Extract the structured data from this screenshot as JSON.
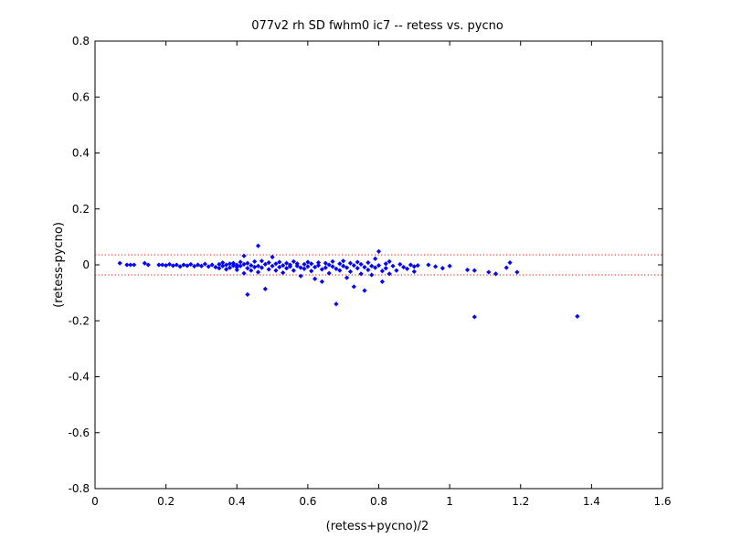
{
  "chart_data": {
    "type": "scatter",
    "title": "077v2 rh SD fwhm0 ic7 -- retess vs. pycno",
    "xlabel": "(retess+pycno)/2",
    "ylabel": "(retess-pycno)",
    "xlim": [
      0,
      1.6
    ],
    "ylim": [
      -0.8,
      0.8
    ],
    "x_ticks": [
      0,
      0.2,
      0.4,
      0.6,
      0.8,
      1,
      1.2,
      1.4,
      1.6
    ],
    "x_tick_labels": [
      "0",
      "0.2",
      "0.4",
      "0.6",
      "0.8",
      "1",
      "1.2",
      "1.4",
      "1.6"
    ],
    "y_ticks": [
      -0.8,
      -0.6,
      -0.4,
      -0.2,
      0,
      0.2,
      0.4,
      0.6,
      0.8
    ],
    "y_tick_labels": [
      "-0.8",
      "-0.6",
      "-0.4",
      "-0.2",
      "0",
      "0.2",
      "0.4",
      "0.6",
      "0.8"
    ],
    "grid": false,
    "legend": "none",
    "marker_color": "#0000ff",
    "limit_line_color": "#ff0000",
    "limit_lines": [
      0.036,
      -0.036
    ],
    "series": [
      {
        "points": [
          [
            0.07,
            0.006
          ],
          [
            0.09,
            0.0
          ],
          [
            0.1,
            0.0
          ],
          [
            0.11,
            0.0
          ],
          [
            0.14,
            0.006
          ],
          [
            0.15,
            0.0
          ],
          [
            0.18,
            0.0
          ],
          [
            0.19,
            0.0
          ],
          [
            0.2,
            -0.002
          ],
          [
            0.21,
            0.002
          ],
          [
            0.22,
            -0.003
          ],
          [
            0.23,
            0.0
          ],
          [
            0.24,
            -0.006
          ],
          [
            0.25,
            0.0
          ],
          [
            0.26,
            -0.003
          ],
          [
            0.27,
            0.002
          ],
          [
            0.28,
            -0.005
          ],
          [
            0.29,
            0.0
          ],
          [
            0.3,
            -0.004
          ],
          [
            0.31,
            0.003
          ],
          [
            0.32,
            -0.006
          ],
          [
            0.33,
            0.0
          ],
          [
            0.34,
            -0.008
          ],
          [
            0.35,
            0.002
          ],
          [
            0.35,
            -0.012
          ],
          [
            0.36,
            0.008
          ],
          [
            0.36,
            -0.004
          ],
          [
            0.37,
            0.0
          ],
          [
            0.37,
            -0.016
          ],
          [
            0.38,
            0.004
          ],
          [
            0.38,
            -0.01
          ],
          [
            0.39,
            -0.003
          ],
          [
            0.39,
            0.006
          ],
          [
            0.4,
            -0.008
          ],
          [
            0.4,
            0.0
          ],
          [
            0.4,
            -0.018
          ],
          [
            0.41,
            0.01
          ],
          [
            0.41,
            -0.004
          ],
          [
            0.42,
            -0.03
          ],
          [
            0.42,
            0.002
          ],
          [
            0.42,
            0.032
          ],
          [
            0.43,
            -0.106
          ],
          [
            0.43,
            -0.012
          ],
          [
            0.43,
            0.006
          ],
          [
            0.44,
            -0.002
          ],
          [
            0.44,
            -0.02
          ],
          [
            0.45,
            0.012
          ],
          [
            0.45,
            -0.008
          ],
          [
            0.46,
            0.068
          ],
          [
            0.46,
            -0.004
          ],
          [
            0.46,
            -0.026
          ],
          [
            0.47,
            0.014
          ],
          [
            0.47,
            -0.01
          ],
          [
            0.48,
            -0.086
          ],
          [
            0.48,
            0.002
          ],
          [
            0.49,
            -0.016
          ],
          [
            0.49,
            0.008
          ],
          [
            0.5,
            -0.004
          ],
          [
            0.5,
            0.028
          ],
          [
            0.51,
            -0.02
          ],
          [
            0.51,
            0.004
          ],
          [
            0.52,
            -0.008
          ],
          [
            0.52,
            0.01
          ],
          [
            0.53,
            -0.002
          ],
          [
            0.53,
            -0.028
          ],
          [
            0.54,
            0.006
          ],
          [
            0.54,
            -0.012
          ],
          [
            0.55,
            0.0
          ],
          [
            0.55,
            -0.006
          ],
          [
            0.56,
            0.012
          ],
          [
            0.56,
            -0.02
          ],
          [
            0.57,
            -0.004
          ],
          [
            0.57,
            0.004
          ],
          [
            0.58,
            -0.01
          ],
          [
            0.58,
            -0.04
          ],
          [
            0.59,
            0.002
          ],
          [
            0.59,
            -0.014
          ],
          [
            0.6,
            0.01
          ],
          [
            0.6,
            -0.006
          ],
          [
            0.61,
            -0.022
          ],
          [
            0.61,
            0.004
          ],
          [
            0.62,
            -0.008
          ],
          [
            0.62,
            -0.05
          ],
          [
            0.63,
            0.008
          ],
          [
            0.63,
            -0.002
          ],
          [
            0.64,
            -0.016
          ],
          [
            0.64,
            -0.06
          ],
          [
            0.65,
            0.006
          ],
          [
            0.65,
            -0.01
          ],
          [
            0.66,
            0.0
          ],
          [
            0.66,
            -0.03
          ],
          [
            0.67,
            0.012
          ],
          [
            0.67,
            -0.006
          ],
          [
            0.68,
            -0.14
          ],
          [
            0.68,
            -0.014
          ],
          [
            0.69,
            0.004
          ],
          [
            0.69,
            -0.02
          ],
          [
            0.7,
            -0.004
          ],
          [
            0.7,
            0.014
          ],
          [
            0.71,
            -0.046
          ],
          [
            0.71,
            -0.01
          ],
          [
            0.72,
            0.006
          ],
          [
            0.72,
            -0.024
          ],
          [
            0.73,
            -0.002
          ],
          [
            0.73,
            -0.078
          ],
          [
            0.74,
            0.01
          ],
          [
            0.74,
            -0.012
          ],
          [
            0.75,
            -0.032
          ],
          [
            0.75,
            0.002
          ],
          [
            0.76,
            -0.092
          ],
          [
            0.76,
            -0.008
          ],
          [
            0.77,
            0.008
          ],
          [
            0.77,
            -0.018
          ],
          [
            0.78,
            -0.004
          ],
          [
            0.78,
            -0.036
          ],
          [
            0.79,
            0.022
          ],
          [
            0.79,
            -0.01
          ],
          [
            0.8,
            0.048
          ],
          [
            0.8,
            -0.002
          ],
          [
            0.81,
            -0.022
          ],
          [
            0.81,
            -0.06
          ],
          [
            0.82,
            0.004
          ],
          [
            0.82,
            -0.012
          ],
          [
            0.83,
            -0.032
          ],
          [
            0.83,
            0.012
          ],
          [
            0.84,
            -0.004
          ],
          [
            0.85,
            -0.02
          ],
          [
            0.86,
            0.002
          ],
          [
            0.87,
            -0.008
          ],
          [
            0.88,
            -0.014
          ],
          [
            0.89,
            0.0
          ],
          [
            0.9,
            -0.006
          ],
          [
            0.9,
            -0.024
          ],
          [
            0.91,
            -0.002
          ],
          [
            0.94,
            0.0
          ],
          [
            0.96,
            -0.006
          ],
          [
            0.98,
            -0.012
          ],
          [
            1.0,
            -0.004
          ],
          [
            1.05,
            -0.018
          ],
          [
            1.07,
            -0.186
          ],
          [
            1.07,
            -0.02
          ],
          [
            1.11,
            -0.026
          ],
          [
            1.13,
            -0.032
          ],
          [
            1.16,
            -0.01
          ],
          [
            1.17,
            0.008
          ],
          [
            1.19,
            -0.026
          ],
          [
            1.36,
            -0.184
          ]
        ]
      }
    ]
  }
}
